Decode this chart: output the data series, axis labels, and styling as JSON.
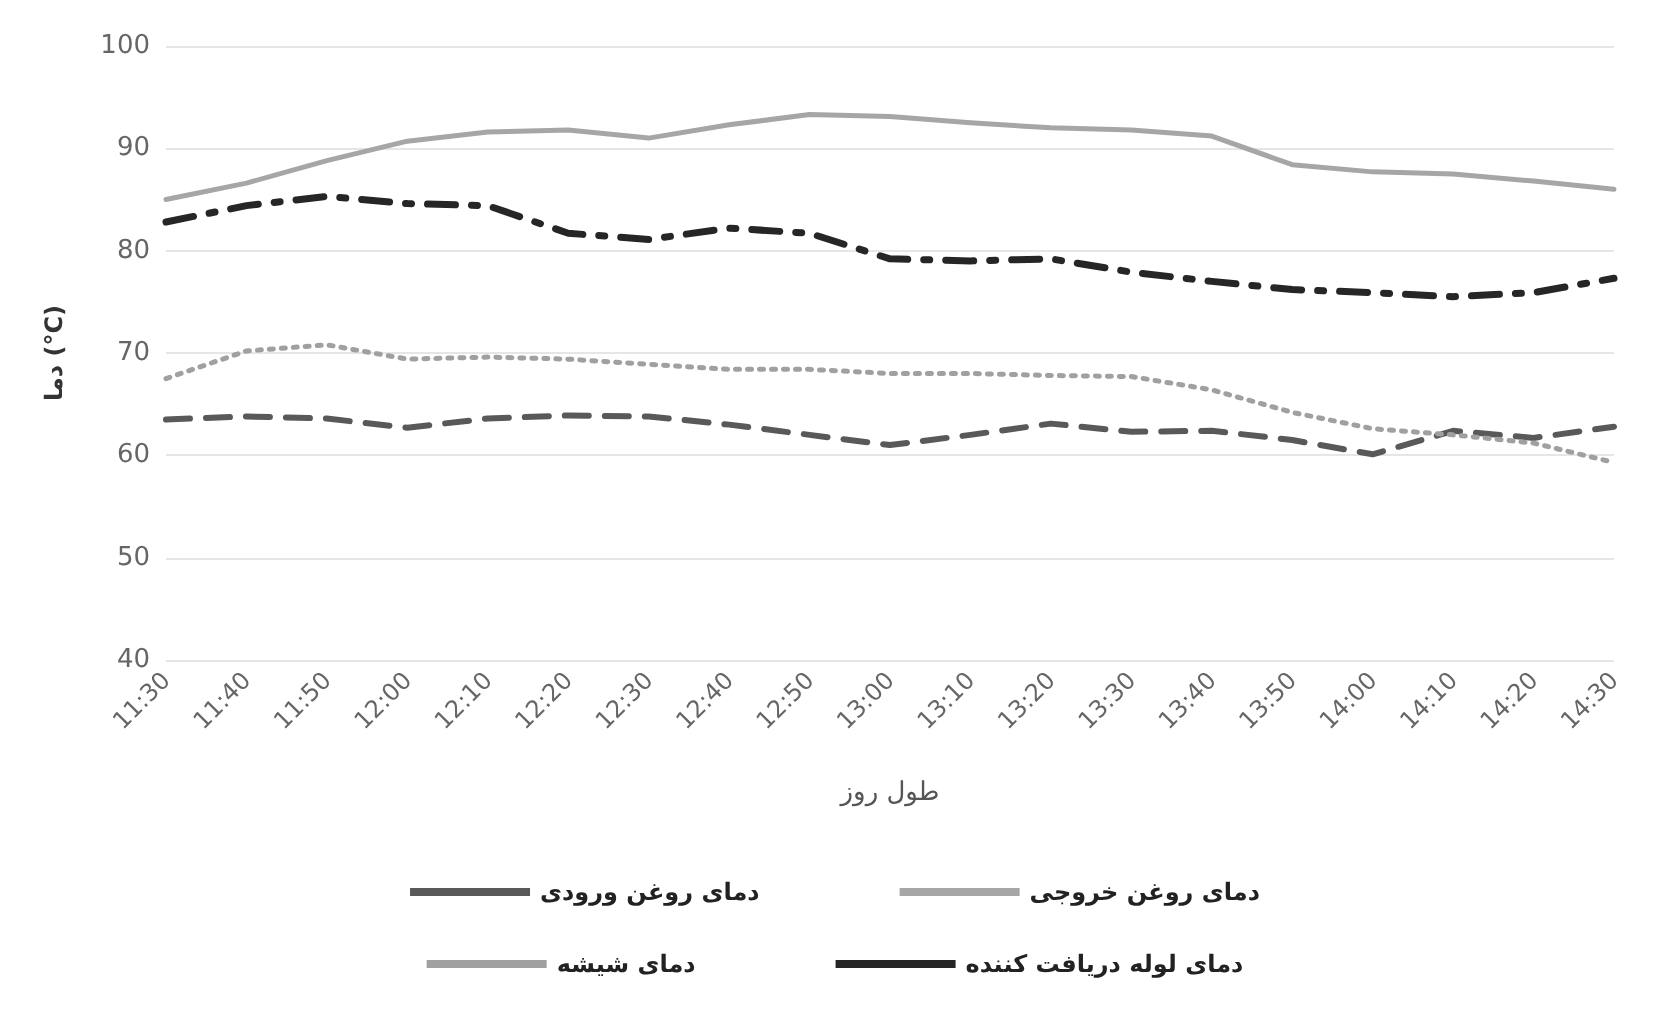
{
  "chart_data": {
    "type": "line",
    "xlabel": "طول روز",
    "ylabel": "دما (°C)",
    "categories": [
      "11:30",
      "11:40",
      "11:50",
      "12:00",
      "12:10",
      "12:20",
      "12:30",
      "12:40",
      "12:50",
      "13:00",
      "13:10",
      "13:20",
      "13:30",
      "13:40",
      "13:50",
      "14:00",
      "14:10",
      "14:20",
      "14:30"
    ],
    "series": [
      {
        "name": "دمای روغن خروجی",
        "color": "#a6a6a6",
        "line_style": "solid",
        "values": [
          85,
          86.6,
          88.8,
          90.7,
          91.6,
          91.8,
          91,
          92.3,
          93.3,
          93.1,
          92.5,
          92,
          91.8,
          91.2,
          88.4,
          87.7,
          87.5,
          86.8,
          86
        ]
      },
      {
        "name": "دمای روغن ورودی",
        "color": "#595959",
        "line_style": "dashed",
        "values": [
          63.5,
          63.8,
          63.6,
          62.7,
          63.6,
          63.9,
          63.8,
          63,
          62,
          61,
          62,
          63.1,
          62.3,
          62.4,
          61.5,
          60.1,
          62.4,
          61.7,
          62.8
        ]
      },
      {
        "name": "دمای لوله دریافت کننده",
        "color": "#262626",
        "line_style": "dashdot",
        "values": [
          82.8,
          84.4,
          85.3,
          84.6,
          84.4,
          81.7,
          81.1,
          82.2,
          81.7,
          79.2,
          79,
          79.2,
          77.9,
          77,
          76.2,
          75.9,
          75.5,
          75.9,
          77.3
        ]
      },
      {
        "name": "دمای شیشه",
        "color": "#a0a0a0",
        "line_style": "dotted",
        "values": [
          67.5,
          70.2,
          70.8,
          69.4,
          69.6,
          69.4,
          68.9,
          68.4,
          68.4,
          68,
          68,
          67.8,
          67.7,
          66.4,
          64.2,
          62.6,
          62,
          61.2,
          59.3
        ]
      }
    ],
    "ylim": [
      40,
      100
    ],
    "yticks": [
      40,
      50,
      60,
      70,
      80,
      90,
      100
    ],
    "grid": "y",
    "legend": "bottom",
    "marker": "none"
  }
}
